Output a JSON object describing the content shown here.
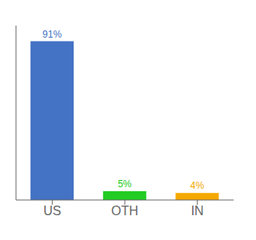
{
  "chart_data": {
    "type": "bar",
    "categories": [
      "US",
      "OTH",
      "IN"
    ],
    "values": [
      91,
      5,
      4
    ],
    "value_labels": [
      "91%",
      "5%",
      "4%"
    ],
    "colors": [
      "#4472c4",
      "#22cc22",
      "#f5a800"
    ],
    "data_labels": true,
    "ylim": [
      0,
      100
    ],
    "tick_labels": "x",
    "grid": false
  }
}
